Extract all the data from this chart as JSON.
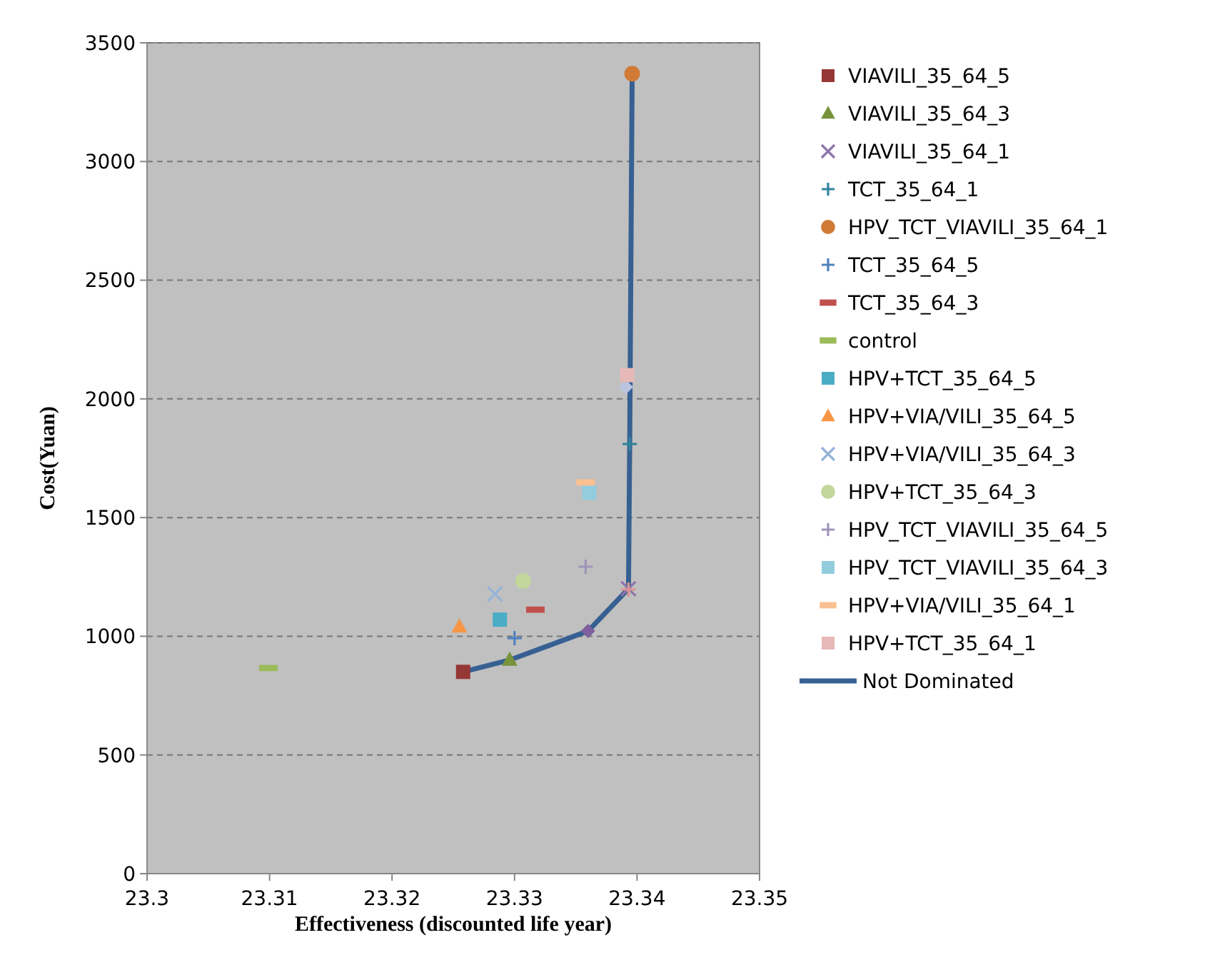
{
  "chart_data": {
    "type": "scatter",
    "xlabel": "Effectiveness (discounted life year)",
    "ylabel": "Cost(Yuan)",
    "xlim": [
      23.3,
      23.35
    ],
    "xticks": [
      23.3,
      23.31,
      23.32,
      23.33,
      23.34,
      23.35
    ],
    "ylim": [
      0,
      3500
    ],
    "yticks": [
      0,
      500,
      1000,
      1500,
      2000,
      2500,
      3000,
      3500
    ],
    "grid": "y",
    "legend": "right",
    "series": [
      {
        "name": "VIAVILI_35_64_5",
        "color": "#953735",
        "marker": "square",
        "x": [
          23.3258
        ],
        "values": [
          850
        ]
      },
      {
        "name": "VIAVILI_35_64_3",
        "color": "#77933c",
        "marker": "triangle",
        "x": [
          23.3296
        ],
        "values": [
          900
        ]
      },
      {
        "color": "#7f5f9e",
        "marker": "diamond",
        "x": [
          23.336
        ],
        "values": [
          1022
        ]
      },
      {
        "name": "VIAVILI_35_64_1",
        "color": "#8c74ab",
        "marker": "x",
        "x": [
          23.3393
        ],
        "values": [
          1200
        ]
      },
      {
        "name": "TCT_35_64_1",
        "color": "#31859c",
        "marker": "cross",
        "x": [
          23.3394
        ],
        "values": [
          1810
        ]
      },
      {
        "name": "HPV_TCT_VIAVILI_35_64_1",
        "color": "#d07b35",
        "marker": "circle",
        "x": [
          23.3396
        ],
        "values": [
          3370
        ]
      },
      {
        "name": "TCT_35_64_5",
        "color": "#4f81bd",
        "marker": "cross",
        "x": [
          23.33
        ],
        "values": [
          992
        ]
      },
      {
        "name": "TCT_35_64_3",
        "color": "#c0504d",
        "x": [
          23.3317
        ],
        "values": [
          1112
        ]
      },
      {
        "name": "control",
        "color": "#9bbb59",
        "x": [
          23.3099
        ],
        "values": [
          866
        ]
      },
      {
        "name": "HPV+TCT_35_64_5",
        "color": "#4bacc6",
        "marker": "square",
        "x": [
          23.3288
        ],
        "values": [
          1070
        ]
      },
      {
        "name": "HPV+VIA/VILI_35_64_5",
        "color": "#f79646",
        "marker": "triangle",
        "x": [
          23.3255
        ],
        "values": [
          1040
        ]
      },
      {
        "name": "HPV+VIA/VILI_35_64_3",
        "color": "#95b3d7",
        "marker": "x",
        "x": [
          23.3284
        ],
        "values": [
          1178
        ]
      },
      {
        "color": "#d99694",
        "marker": "cross",
        "x": [
          23.3393
        ],
        "values": [
          1197
        ]
      },
      {
        "name": "HPV+TCT_35_64_3",
        "color": "#c3d69b",
        "marker": "circle",
        "x": [
          23.3307
        ],
        "values": [
          1233
        ]
      },
      {
        "name": "HPV_TCT_VIAVILI_35_64_5",
        "color": "#a094b8",
        "marker": "cross",
        "x": [
          23.3358
        ],
        "values": [
          1293
        ]
      },
      {
        "name": "HPV_TCT_VIAVILI_35_64_3",
        "color": "#93cddd",
        "marker": "square",
        "x": [
          23.3361
        ],
        "values": [
          1605
        ]
      },
      {
        "name": "HPV+VIA/VILI_35_64_1",
        "color": "#fac090",
        "x": [
          23.3358
        ],
        "values": [
          1648
        ]
      },
      {
        "color": "#b9c5e0",
        "marker": "diamond",
        "x": [
          23.3391
        ],
        "values": [
          2050
        ]
      },
      {
        "name": "HPV+TCT_35_64_1",
        "color": "#e6b9b8",
        "marker": "square",
        "x": [
          23.3392
        ],
        "values": [
          2100
        ]
      },
      {
        "name": "Not Dominated",
        "type": "line",
        "color": "#376092",
        "marker": "none",
        "x": [
          23.3258,
          23.3296,
          23.336,
          23.3393,
          23.3394,
          23.3396
        ],
        "values": [
          850,
          900,
          1022,
          1200,
          1810,
          3370
        ]
      }
    ]
  }
}
